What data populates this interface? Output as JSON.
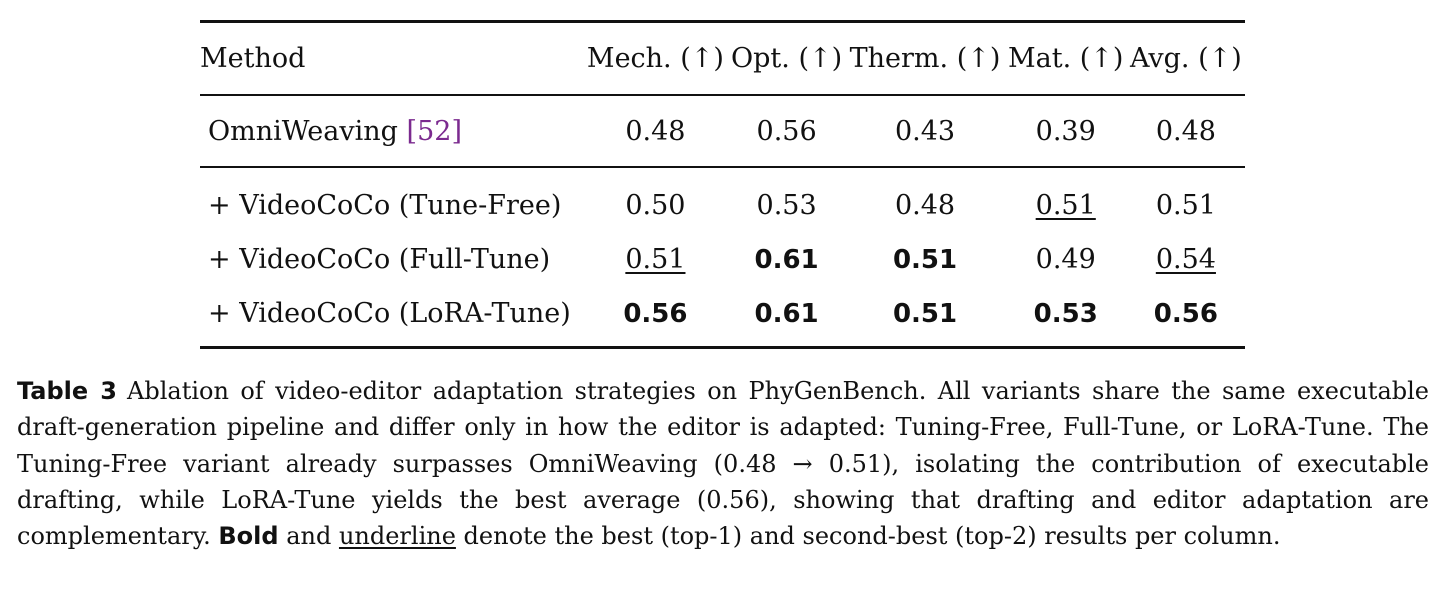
{
  "table": {
    "headers": {
      "method": "Method",
      "mech": "Mech. (↑)",
      "opt": "Opt. (↑)",
      "therm": "Therm. (↑)",
      "mat": "Mat. (↑)",
      "avg": "Avg. (↑)"
    },
    "baseline": {
      "method": "OmniWeaving ",
      "cite_open": "[",
      "cite": "52",
      "cite_close": "]",
      "mech": "0.48",
      "opt": "0.56",
      "therm": "0.43",
      "mat": "0.39",
      "avg": "0.48"
    },
    "rows": [
      {
        "method": "+ VideoCoCo (Tune-Free)",
        "mech": "0.50",
        "opt": "0.53",
        "therm": "0.48",
        "mat": "0.51",
        "avg": "0.51",
        "emphasis": {
          "mech": "none",
          "opt": "none",
          "therm": "none",
          "mat": "underline",
          "avg": "none"
        }
      },
      {
        "method": "+ VideoCoCo (Full-Tune)",
        "mech": "0.51",
        "opt": "0.61",
        "therm": "0.51",
        "mat": "0.49",
        "avg": "0.54",
        "emphasis": {
          "mech": "underline",
          "opt": "bold",
          "therm": "bold",
          "mat": "none",
          "avg": "underline"
        }
      },
      {
        "method": "+ VideoCoCo (LoRA-Tune)",
        "mech": "0.56",
        "opt": "0.61",
        "therm": "0.51",
        "mat": "0.53",
        "avg": "0.56",
        "emphasis": {
          "mech": "bold",
          "opt": "bold",
          "therm": "bold",
          "mat": "bold",
          "avg": "bold"
        }
      }
    ]
  },
  "caption": {
    "label": "Table 3",
    "text_1": "Ablation of video-editor adaptation strategies on PhyGenBench. All variants share the same ex­ecutable draft-generation pipeline and differ only in how the editor is adapted: Tuning-Free, Full-Tune, or LoRA-Tune. The Tuning-Free variant already surpasses OmniWeaving (0.48 → 0.51), isolating the contri­bution of executable drafting, while LoRA-Tune yields the best average (0.56), showing that drafting and editor adaptation are complementary. ",
    "bold_word": "Bold",
    "text_2": " and ",
    "underline_word": "underline",
    "text_3": " denote the best (top-1) and second-best (top-2) results per column."
  }
}
